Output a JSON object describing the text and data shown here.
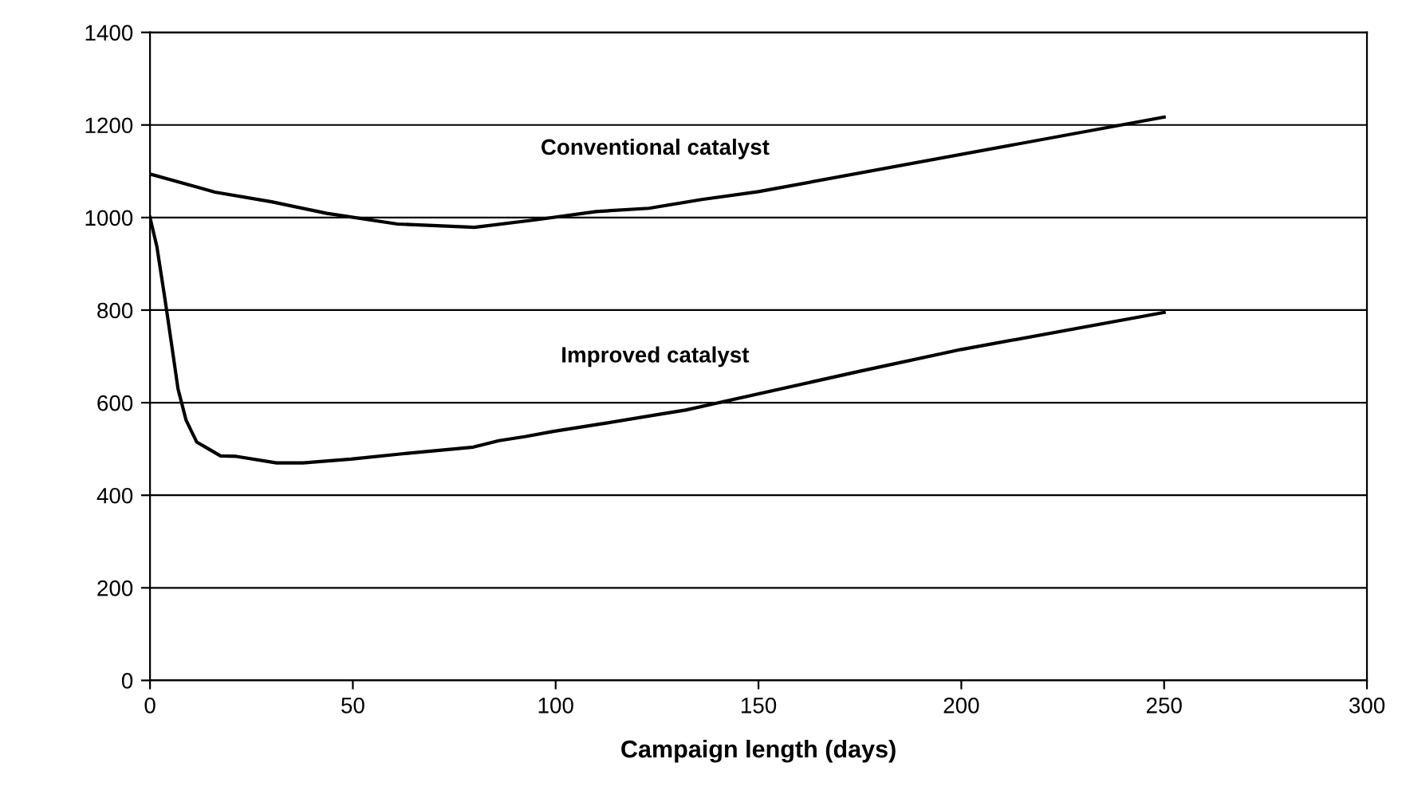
{
  "chart_data": {
    "type": "line",
    "xlabel": "Campaign length (days)",
    "xlim": [
      0,
      300
    ],
    "xticks": [
      0,
      50,
      100,
      150,
      200,
      250,
      300
    ],
    "ylim": [
      0,
      1400
    ],
    "yticks": [
      0,
      200,
      400,
      600,
      800,
      1000,
      1200,
      1400
    ],
    "grid": "y",
    "legend": false,
    "marker": "none",
    "line_style": "solid",
    "series": [
      {
        "name": "Conventional catalyst",
        "color": "#000000",
        "x": [
          0,
          16,
          30,
          43.6,
          61,
          80,
          95,
          110,
          123,
          136,
          150,
          250
        ],
        "values": [
          1094,
          1055,
          1034,
          1009,
          986,
          979,
          995,
          1013,
          1020,
          1039,
          1056,
          1217
        ]
      },
      {
        "name": "Improved catalyst",
        "color": "#000000",
        "x": [
          0,
          1.7,
          3.7,
          5.6,
          6.9,
          8.9,
          11.5,
          17.4,
          21.3,
          31.2,
          37.7,
          49.5,
          62.6,
          79.7,
          86,
          92.6,
          99.4,
          112.5,
          125.6,
          132,
          175,
          200,
          250
        ],
        "values": [
          1000,
          937,
          823,
          709,
          630,
          562,
          515,
          485,
          484,
          470,
          470,
          478,
          490,
          504,
          518,
          527,
          538,
          556,
          575,
          584,
          668,
          715,
          795
        ]
      }
    ]
  }
}
